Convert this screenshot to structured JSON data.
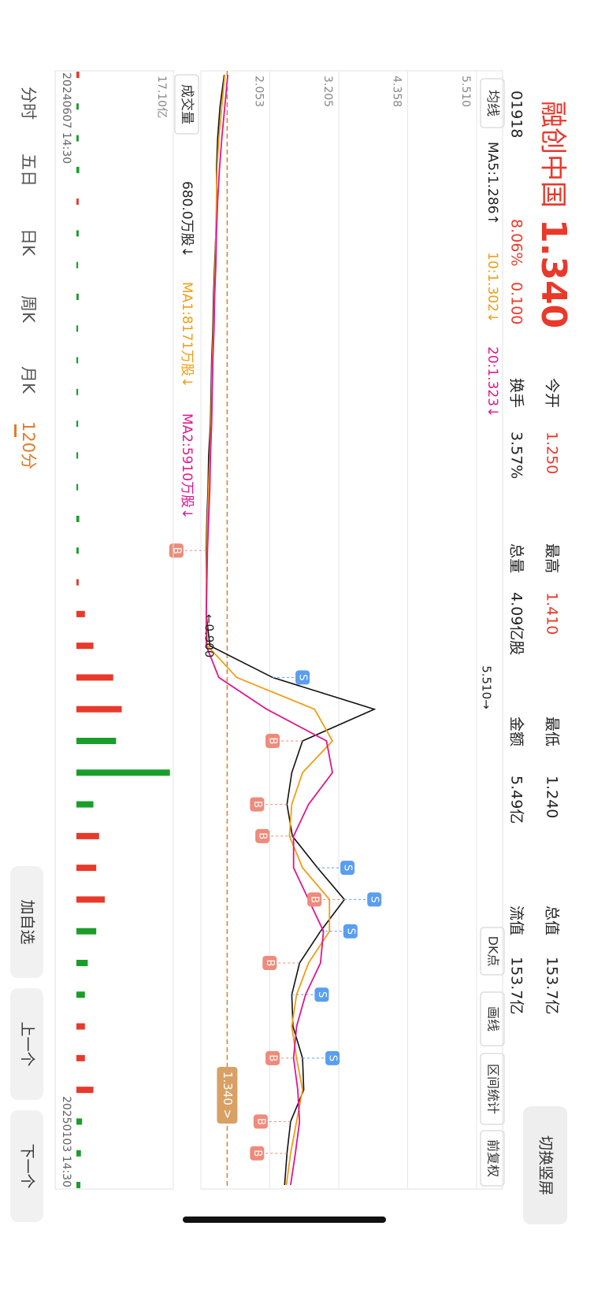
{
  "header": {
    "name": "融创中国",
    "price": "1.340",
    "code": "01918",
    "change_pct": "8.06%",
    "change": "0.100",
    "stats": [
      {
        "label": "今开",
        "value": "1.250",
        "color": "#e8392b"
      },
      {
        "label": "换手",
        "value": "3.57%",
        "color": "#222"
      },
      {
        "label": "最高",
        "value": "1.410",
        "color": "#e8392b"
      },
      {
        "label": "总量",
        "value": "4.09亿股",
        "color": "#222"
      },
      {
        "label": "最低",
        "value": "1.240",
        "color": "#222"
      },
      {
        "label": "金额",
        "value": "5.49亿",
        "color": "#222"
      },
      {
        "label": "总值",
        "value": "153.7亿",
        "color": "#222"
      },
      {
        "label": "流值",
        "value": "153.7亿",
        "color": "#222"
      }
    ],
    "orientation_button": "切换竖屏"
  },
  "toolbar": {
    "indicator": "均线",
    "ma": [
      "MA5:1.286↑",
      "10:1.302↓",
      "20:1.323↓"
    ],
    "buttons": [
      "DK点",
      "画线",
      "区间统计",
      "前复权"
    ]
  },
  "volume_bar": {
    "indicator": "成交量",
    "values": [
      "680.0万股↓",
      "MA1:8171万股↓",
      "MA2:5910万股↓"
    ]
  },
  "tabs": [
    "分时",
    "五日",
    "日K",
    "周K",
    "月K",
    "120分"
  ],
  "actions": [
    "加自选",
    "上一个",
    "下一个"
  ],
  "chart_data": {
    "type": "line",
    "categories": [
      "20240607 14:30",
      null,
      null,
      null,
      null,
      null,
      null,
      null,
      null,
      null,
      null,
      null,
      null,
      null,
      null,
      null,
      null,
      null,
      null,
      null,
      null,
      null,
      null,
      null,
      null,
      null,
      null,
      null,
      null,
      null,
      null,
      null,
      null,
      null,
      null,
      "20250103 14:30"
    ],
    "series": [
      {
        "color": "#111111",
        "values": [
          1.29,
          1.22,
          1.18,
          1.16,
          1.17,
          1.15,
          1.13,
          1.11,
          1.1,
          1.08,
          1.07,
          1.06,
          1.03,
          1.02,
          1.0,
          0.99,
          0.99,
          0.99,
          1.05,
          2.1,
          3.8,
          2.6,
          2.42,
          2.34,
          2.43,
          2.85,
          3.3,
          2.9,
          2.55,
          2.42,
          2.44,
          2.6,
          2.62,
          2.4,
          2.34,
          2.3
        ]
      },
      {
        "color": "#f39c12",
        "values": [
          1.3,
          1.25,
          1.2,
          1.17,
          1.16,
          1.15,
          1.14,
          1.12,
          1.11,
          1.09,
          1.08,
          1.07,
          1.05,
          1.03,
          1.01,
          1.0,
          0.99,
          0.99,
          1.01,
          1.5,
          2.8,
          3.1,
          2.6,
          2.42,
          2.38,
          2.6,
          3.05,
          3.05,
          2.7,
          2.5,
          2.42,
          2.5,
          2.6,
          2.5,
          2.4,
          2.33
        ]
      },
      {
        "color": "#e0168f",
        "values": [
          1.35,
          1.3,
          1.25,
          1.21,
          1.18,
          1.16,
          1.15,
          1.13,
          1.12,
          1.1,
          1.09,
          1.08,
          1.06,
          1.05,
          1.03,
          1.01,
          1.0,
          0.99,
          0.99,
          1.2,
          2.0,
          3.0,
          3.1,
          2.7,
          2.45,
          2.45,
          2.7,
          2.95,
          2.9,
          2.65,
          2.5,
          2.45,
          2.52,
          2.55,
          2.48,
          2.4
        ]
      }
    ],
    "ylim": [
      0.9,
      5.51
    ],
    "yticks": [
      {
        "value": 0.9,
        "label": "0.900"
      },
      2.053,
      3.205,
      4.358,
      {
        "value": 5.51,
        "label": "5.510"
      }
    ],
    "grid": true,
    "current_price": {
      "value": 1.34,
      "label": "1.340 >",
      "color": "#e07b2a"
    },
    "annotations": [
      {
        "label": "5.510→",
        "value": 5.51,
        "index": 20
      },
      {
        "label": "←0.900",
        "value": 0.9,
        "index": 17
      }
    ],
    "trade_markers": [
      {
        "label": "B",
        "index": 15
      },
      {
        "label": "S",
        "index": 19
      },
      {
        "label": "B",
        "index": 21
      },
      {
        "label": "B",
        "index": 23
      },
      {
        "label": "B",
        "index": 24
      },
      {
        "label": "S",
        "index": 25
      },
      {
        "label": "S",
        "index": 26
      },
      {
        "label": "B",
        "index": 26
      },
      {
        "label": "S",
        "index": 27
      },
      {
        "label": "B",
        "index": 28
      },
      {
        "label": "S",
        "index": 29
      },
      {
        "label": "B",
        "index": 31
      },
      {
        "label": "S",
        "index": 31
      },
      {
        "label": "B",
        "index": 33
      },
      {
        "label": "B",
        "index": 34
      }
    ],
    "volume": {
      "type": "bar",
      "up_color": "#e8392b",
      "down_color": "#1a9e2a",
      "values": [
        0.5,
        0.4,
        0.4,
        0.5,
        0.4,
        0.4,
        0.3,
        0.4,
        0.3,
        0.3,
        0.3,
        0.3,
        0.3,
        0.3,
        0.5,
        0.4,
        0.4,
        1.5,
        3.0,
        6.5,
        8.0,
        7.0,
        16.5,
        3.0,
        4.0,
        3.5,
        5.0,
        3.5,
        2.0,
        1.5,
        1.5,
        1.5,
        3.0,
        1.0,
        0.8,
        0.7
      ],
      "ylim": [
        0,
        17.1
      ],
      "yticks": [
        {
          "value": 17.1,
          "label": "17.10亿"
        }
      ]
    }
  }
}
